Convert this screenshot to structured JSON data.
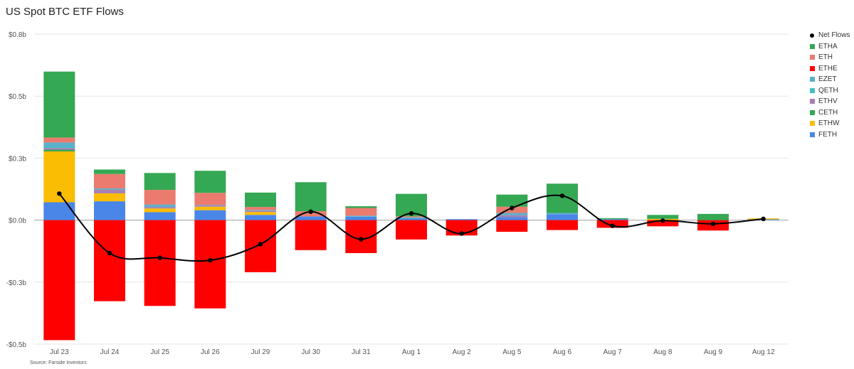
{
  "title": "US Spot BTC ETF Flows",
  "source": "Source: Farside Investors",
  "chart_data": {
    "type": "bar",
    "stacked": true,
    "title": "US Spot BTC ETF Flows",
    "xlabel": "",
    "ylabel": "",
    "ylim": [
      -0.5,
      0.75
    ],
    "yticks": [
      {
        "value": 0.75,
        "label": "$0.8b"
      },
      {
        "value": 0.5,
        "label": "$0.5b"
      },
      {
        "value": 0.25,
        "label": "$0.3b"
      },
      {
        "value": 0,
        "label": "$0.0b"
      },
      {
        "value": -0.25,
        "label": "-$0.3b"
      },
      {
        "value": -0.5,
        "label": "-$0.5b"
      }
    ],
    "grid": true,
    "legend_position": "right",
    "categories": [
      "Jul 23",
      "Jul 24",
      "Jul 25",
      "Jul 26",
      "Jul 29",
      "Jul 30",
      "Jul 31",
      "Aug 1",
      "Aug 2",
      "Aug 5",
      "Aug 6",
      "Aug 7",
      "Aug 8",
      "Aug 9",
      "Aug 12"
    ],
    "series": [
      {
        "name": "FETH",
        "color": "#4a86e8",
        "values": [
          0.072,
          0.076,
          0.032,
          0.04,
          0.021,
          0.015,
          0.014,
          0.006,
          0.004,
          0.012,
          0.024,
          0.004,
          0,
          0,
          0.003
        ]
      },
      {
        "name": "ETHW",
        "color": "#fbbc04",
        "values": [
          0.205,
          0.032,
          0.015,
          0.014,
          0.012,
          0,
          0,
          0,
          0,
          0,
          0,
          0,
          0.005,
          0,
          0.004
        ]
      },
      {
        "name": "CETH",
        "color": "#34a853",
        "values": [
          0.007,
          0,
          0,
          0,
          0,
          0,
          0,
          0,
          0,
          0,
          0,
          0,
          0,
          0,
          0
        ]
      },
      {
        "name": "ETHV",
        "color": "#a67fb4",
        "values": [
          0.007,
          0.015,
          0.006,
          0.005,
          0.005,
          0,
          0,
          0,
          0,
          0.008,
          0,
          0,
          0,
          0,
          0
        ]
      },
      {
        "name": "QETH",
        "color": "#46bdc6",
        "values": [
          0.006,
          0,
          0,
          0,
          0,
          0,
          0,
          0,
          0,
          0,
          0,
          0,
          0,
          0,
          0
        ]
      },
      {
        "name": "EZET",
        "color": "#5bb0c9",
        "values": [
          0.016,
          0.005,
          0.01,
          0.002,
          0.003,
          0,
          0.004,
          0.005,
          0,
          0.009,
          0.005,
          0,
          0,
          0,
          0
        ]
      },
      {
        "name": "ETHE",
        "color": "#ff0000",
        "values": [
          -0.484,
          -0.327,
          -0.346,
          -0.356,
          -0.21,
          -0.121,
          -0.133,
          -0.078,
          -0.062,
          -0.047,
          -0.04,
          -0.031,
          -0.025,
          -0.042,
          0
        ]
      },
      {
        "name": "ETH",
        "color": "#ea7b6e",
        "values": [
          0.02,
          0.058,
          0.059,
          0.049,
          0.012,
          0.021,
          0.031,
          0.004,
          0,
          0.025,
          0,
          0,
          0,
          0,
          0
        ]
      },
      {
        "name": "ETHA",
        "color": "#34a853",
        "values": [
          0.266,
          0.018,
          0.068,
          0.089,
          0.058,
          0.117,
          0.007,
          0.091,
          0,
          0.049,
          0.118,
          0.004,
          0.016,
          0.025,
          0
        ]
      }
    ],
    "net_flows": {
      "name": "Net Flows",
      "color": "#000000",
      "values": [
        0.107,
        -0.133,
        -0.152,
        -0.162,
        -0.097,
        0.034,
        -0.077,
        0.027,
        -0.054,
        0.049,
        0.098,
        -0.023,
        -0.002,
        -0.015,
        0.005
      ]
    },
    "legend_order": [
      "Net Flows",
      "ETHA",
      "ETH",
      "ETHE",
      "EZET",
      "QETH",
      "ETHV",
      "CETH",
      "ETHW",
      "FETH"
    ]
  }
}
